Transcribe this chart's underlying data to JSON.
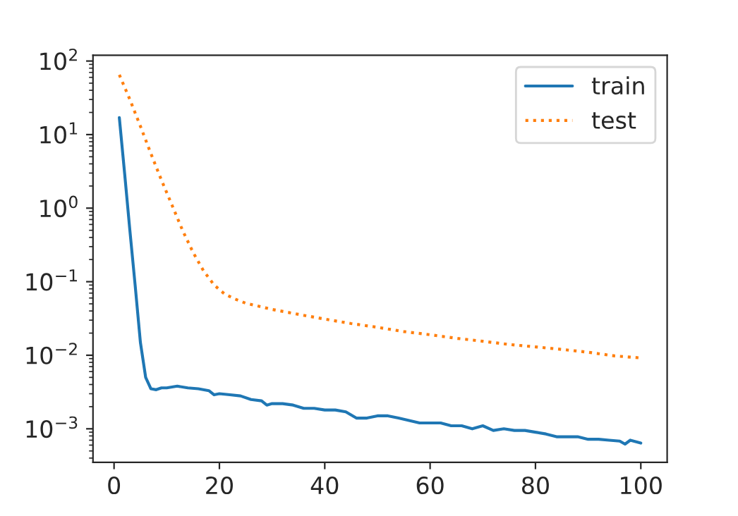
{
  "chart_data": {
    "type": "line",
    "log": "y",
    "legend": "top right",
    "grid": false,
    "xlim": [
      -4,
      105
    ],
    "xticks": [
      0,
      20,
      40,
      60,
      80,
      100
    ],
    "ylim": [
      0.00035,
      120
    ],
    "yticks": [
      {
        "value": 0.001,
        "label": "10$^{−3}$"
      },
      {
        "value": 0.01,
        "label": "10$^{−2}$"
      },
      {
        "value": 0.1,
        "label": "10$^{−1}$"
      },
      {
        "value": 1,
        "label": "10$^{0}$"
      },
      {
        "value": 10,
        "label": "10$^{1}$"
      },
      {
        "value": 100,
        "label": "10$^{2}$"
      }
    ],
    "series": [
      {
        "name": "train",
        "color": "#1f77b4",
        "line_style": "solid",
        "x": [
          1,
          2,
          3,
          4,
          5,
          6,
          7,
          8,
          9,
          10,
          12,
          14,
          16,
          18,
          19,
          20,
          22,
          24,
          26,
          28,
          29,
          30,
          32,
          34,
          36,
          38,
          40,
          42,
          44,
          46,
          48,
          50,
          52,
          54,
          56,
          58,
          60,
          62,
          64,
          66,
          68,
          70,
          72,
          74,
          76,
          78,
          80,
          82,
          84,
          86,
          88,
          90,
          92,
          94,
          96,
          97,
          98,
          100
        ],
        "values": [
          17,
          3,
          0.5,
          0.09,
          0.015,
          0.005,
          0.0035,
          0.0034,
          0.0036,
          0.0036,
          0.0038,
          0.0036,
          0.0035,
          0.0033,
          0.0029,
          0.003,
          0.0029,
          0.0028,
          0.0025,
          0.0024,
          0.0021,
          0.0022,
          0.0022,
          0.0021,
          0.0019,
          0.0019,
          0.0018,
          0.0018,
          0.0017,
          0.0014,
          0.0014,
          0.0015,
          0.0015,
          0.0014,
          0.0013,
          0.0012,
          0.0012,
          0.0012,
          0.0011,
          0.0011,
          0.001,
          0.0011,
          0.00095,
          0.001,
          0.00095,
          0.00095,
          0.0009,
          0.00085,
          0.00078,
          0.00078,
          0.00078,
          0.00072,
          0.00072,
          0.0007,
          0.00068,
          0.00062,
          0.0007,
          0.00064
        ]
      },
      {
        "name": "test",
        "color": "#ff7f0e",
        "line_style": "dotted",
        "x": [
          1,
          3,
          5,
          7,
          9,
          11,
          13,
          15,
          17,
          19,
          21,
          23,
          25,
          30,
          35,
          40,
          45,
          50,
          55,
          60,
          65,
          70,
          75,
          80,
          85,
          90,
          95,
          100
        ],
        "values": [
          65,
          30,
          13,
          5.5,
          2.4,
          1.1,
          0.5,
          0.25,
          0.14,
          0.09,
          0.068,
          0.058,
          0.051,
          0.042,
          0.036,
          0.031,
          0.027,
          0.024,
          0.021,
          0.019,
          0.017,
          0.0155,
          0.014,
          0.013,
          0.012,
          0.011,
          0.0098,
          0.0092
        ]
      }
    ]
  }
}
